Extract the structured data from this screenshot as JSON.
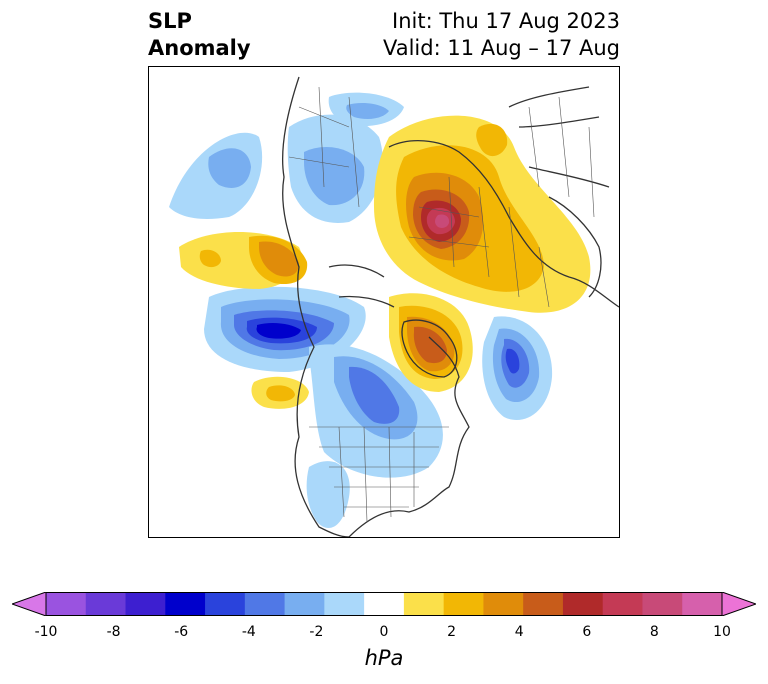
{
  "title": {
    "left_line1": "SLP",
    "left_line2": "Anomaly",
    "init": "Init: Thu 17 Aug 2023",
    "valid": "Valid: 11 Aug – 17 Aug"
  },
  "map": {
    "land_outline_color": "#333333",
    "anomaly_centers": [
      {
        "sign": "positive",
        "peak_hpa": 9
      },
      {
        "sign": "positive",
        "peak_hpa": 6
      },
      {
        "sign": "positive",
        "peak_hpa": 5
      },
      {
        "sign": "negative",
        "peak_hpa": -6
      },
      {
        "sign": "negative",
        "peak_hpa": -5
      },
      {
        "sign": "negative",
        "peak_hpa": -4
      }
    ]
  },
  "colorbar": {
    "label": "hPa",
    "ticks": [
      "-10",
      "-8",
      "-6",
      "-4",
      "-2",
      "0",
      "2",
      "4",
      "6",
      "8",
      "10"
    ],
    "colors": [
      "#d877e8",
      "#9a53e0",
      "#6a3ad8",
      "#3d1fd0",
      "#0000cc",
      "#2a43dc",
      "#5078e6",
      "#78aef0",
      "#aad8fa",
      "#ffffff",
      "#fbe04a",
      "#f2b705",
      "#e08c0a",
      "#c85c1a",
      "#b02a2a",
      "#c43a55",
      "#c84a78",
      "#d660ac",
      "#ec73d6"
    ]
  }
}
